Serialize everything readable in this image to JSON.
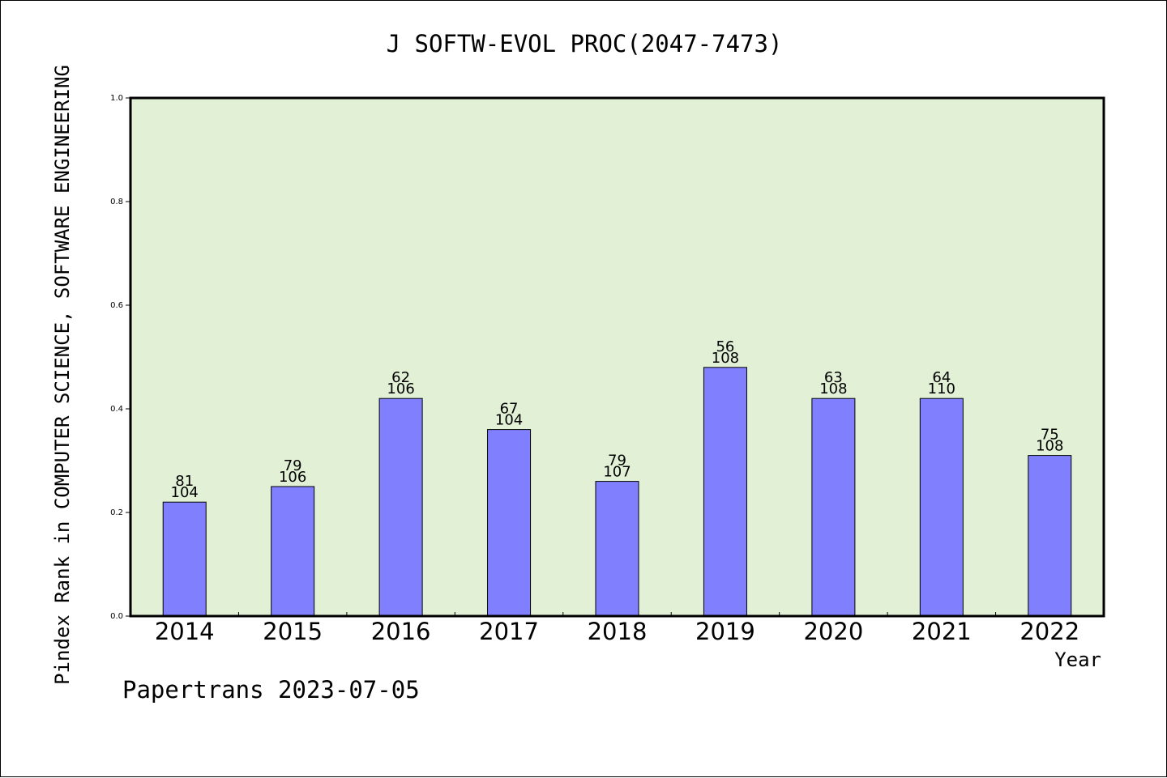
{
  "chart_data": {
    "type": "bar",
    "title": "J SOFTW-EVOL PROC(2047-7473)",
    "xlabel": "Year",
    "ylabel": "Pindex Rank in COMPUTER SCIENCE, SOFTWARE ENGINEERING",
    "categories": [
      "2014",
      "2015",
      "2016",
      "2017",
      "2018",
      "2019",
      "2020",
      "2021",
      "2022"
    ],
    "values": [
      0.22,
      0.25,
      0.42,
      0.36,
      0.26,
      0.48,
      0.42,
      0.42,
      0.31
    ],
    "rank_labels": [
      "81",
      "79",
      "62",
      "67",
      "79",
      "56",
      "63",
      "64",
      "75"
    ],
    "total_labels": [
      "104",
      "106",
      "106",
      "104",
      "107",
      "108",
      "108",
      "110",
      "108"
    ],
    "ylim": [
      0,
      1.0
    ],
    "yticks": [
      "0.0",
      "0.2",
      "0.4",
      "0.6",
      "0.8",
      "1.0"
    ],
    "grid": false,
    "colors": {
      "plot_background": "#e2f0d6",
      "bar_fill": "#8080ff",
      "bar_stroke": "#000000"
    }
  },
  "footer": "Papertrans 2023-07-05"
}
